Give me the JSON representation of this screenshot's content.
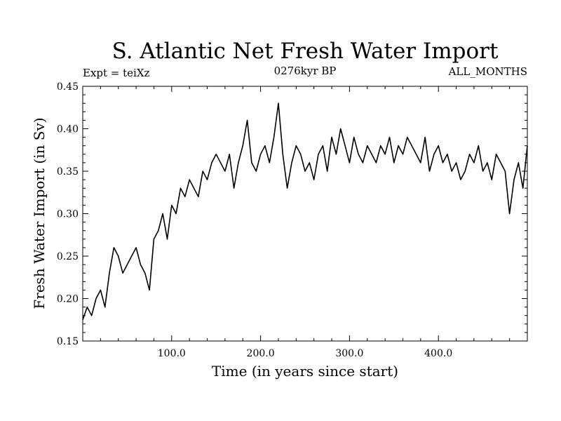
{
  "chart_data": {
    "type": "line",
    "title": "S. Atlantic Net Fresh Water Import",
    "subtitle_left": "Expt = teiXz",
    "subtitle_center": "0276kyr BP",
    "subtitle_right": "ALL_MONTHS",
    "xlabel": "Time (in years since start)",
    "ylabel": "Fresh Water Import (in Sv)",
    "xlim": [
      0,
      500
    ],
    "ylim": [
      0.15,
      0.45
    ],
    "x_ticks": [
      100,
      200,
      300,
      400
    ],
    "x_tick_labels": [
      "100.0",
      "200.0",
      "300.0",
      "400.0"
    ],
    "y_ticks": [
      0.15,
      0.2,
      0.25,
      0.3,
      0.35,
      0.4,
      0.45
    ],
    "y_tick_labels": [
      "0.15",
      "0.20",
      "0.25",
      "0.30",
      "0.35",
      "0.40",
      "0.45"
    ],
    "grid": false,
    "line_color": "#000000",
    "series": [
      {
        "x": [
          0,
          5,
          10,
          15,
          20,
          25,
          30,
          35,
          40,
          45,
          50,
          55,
          60,
          65,
          70,
          75,
          80,
          85,
          90,
          95,
          100,
          105,
          110,
          115,
          120,
          125,
          130,
          135,
          140,
          145,
          150,
          155,
          160,
          165,
          170,
          175,
          180,
          185,
          190,
          195,
          200,
          205,
          210,
          215,
          220,
          225,
          230,
          235,
          240,
          245,
          250,
          255,
          260,
          265,
          270,
          275,
          280,
          285,
          290,
          295,
          300,
          305,
          310,
          315,
          320,
          325,
          330,
          335,
          340,
          345,
          350,
          355,
          360,
          365,
          370,
          375,
          380,
          385,
          390,
          395,
          400,
          405,
          410,
          415,
          420,
          425,
          430,
          435,
          440,
          445,
          450,
          455,
          460,
          465,
          470,
          475,
          480,
          485,
          490,
          495,
          500
        ],
        "y": [
          0.175,
          0.19,
          0.18,
          0.2,
          0.21,
          0.19,
          0.23,
          0.26,
          0.25,
          0.23,
          0.24,
          0.25,
          0.26,
          0.24,
          0.23,
          0.21,
          0.27,
          0.28,
          0.3,
          0.27,
          0.31,
          0.3,
          0.33,
          0.32,
          0.34,
          0.33,
          0.32,
          0.35,
          0.34,
          0.36,
          0.37,
          0.36,
          0.35,
          0.37,
          0.33,
          0.36,
          0.38,
          0.41,
          0.36,
          0.35,
          0.37,
          0.38,
          0.36,
          0.39,
          0.43,
          0.37,
          0.33,
          0.36,
          0.38,
          0.37,
          0.35,
          0.36,
          0.34,
          0.37,
          0.38,
          0.35,
          0.39,
          0.37,
          0.4,
          0.38,
          0.36,
          0.39,
          0.37,
          0.36,
          0.38,
          0.37,
          0.36,
          0.38,
          0.37,
          0.39,
          0.36,
          0.38,
          0.37,
          0.39,
          0.38,
          0.37,
          0.36,
          0.39,
          0.35,
          0.37,
          0.38,
          0.36,
          0.37,
          0.35,
          0.36,
          0.34,
          0.35,
          0.37,
          0.36,
          0.38,
          0.35,
          0.36,
          0.34,
          0.37,
          0.36,
          0.35,
          0.3,
          0.34,
          0.36,
          0.33,
          0.38
        ]
      }
    ]
  }
}
